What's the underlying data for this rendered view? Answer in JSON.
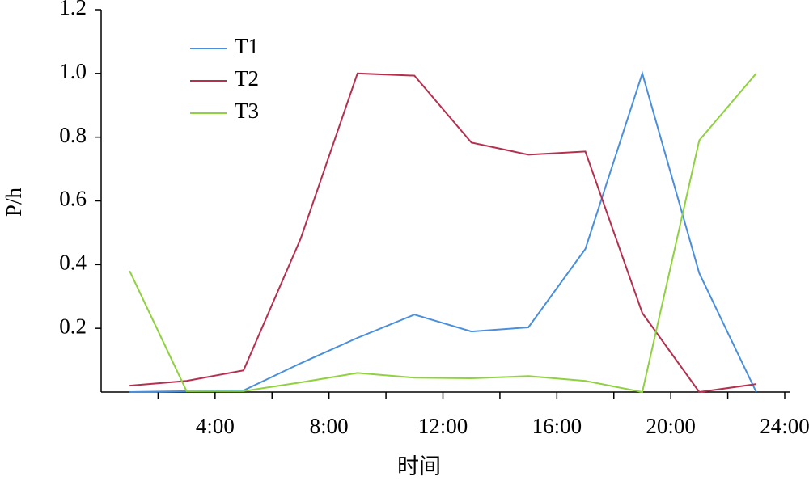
{
  "chart_data": {
    "type": "line",
    "x_label": "时间",
    "y_label": "P/h",
    "x": [
      1,
      3,
      5,
      7,
      9,
      11,
      13,
      15,
      17,
      19,
      21,
      23
    ],
    "series": [
      {
        "name": "T1",
        "color": "#4a8fdc",
        "values": [
          0.0,
          0.003,
          0.005,
          0.09,
          0.17,
          0.243,
          0.19,
          0.203,
          0.449,
          1.0,
          0.373,
          0.0
        ]
      },
      {
        "name": "T2",
        "color": "#b5304f",
        "values": [
          0.02,
          0.035,
          0.068,
          0.48,
          1.0,
          0.993,
          0.783,
          0.745,
          0.755,
          0.248,
          0.0,
          0.025
        ]
      },
      {
        "name": "T3",
        "color": "#8fd13f",
        "values": [
          0.38,
          0.003,
          0.003,
          0.03,
          0.06,
          0.045,
          0.043,
          0.05,
          0.035,
          0.0,
          0.79,
          1.0
        ]
      }
    ],
    "xlim": [
      0,
      24
    ],
    "xticks": [
      {
        "value": 4,
        "label": "4:00"
      },
      {
        "value": 8,
        "label": "8:00"
      },
      {
        "value": 12,
        "label": "12:00"
      },
      {
        "value": 16,
        "label": "16:00"
      },
      {
        "value": 20,
        "label": "20:00"
      },
      {
        "value": 24,
        "label": "24:00"
      }
    ],
    "xminorticks": [
      2,
      6,
      10,
      14,
      18,
      22
    ],
    "ylim": [
      0,
      1.2
    ],
    "yticks": [
      0.2,
      0.4,
      0.6,
      {
        "value": 0.8,
        "label": "0.8"
      },
      {
        "value": 1,
        "label": "1.0"
      },
      1.2
    ],
    "grid": false,
    "legend": "upper-left"
  }
}
